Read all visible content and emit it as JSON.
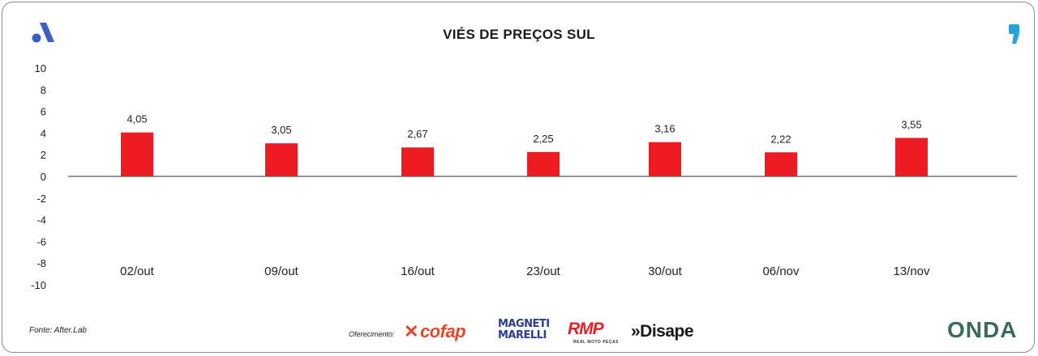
{
  "header": {
    "title": "VIÉS DE PREÇOS SUL"
  },
  "icons": {
    "left_logo": "after-lab-logo-icon",
    "right_logo": "comma-logo-icon"
  },
  "footer": {
    "source": "Fonte: After.Lab",
    "offer_label": "Oferecimento:",
    "sponsors": [
      "cofap",
      "MAGNETI MARELLI",
      "RMP",
      "REAL MOTO PEÇAS",
      "»Disape"
    ],
    "badge": "ONDA"
  },
  "colors": {
    "bar": "#ed1c24",
    "axis": "#555555",
    "logo_blue": "#3b5fc0"
  },
  "chart_data": {
    "type": "bar",
    "title": "VIÉS DE PREÇOS SUL",
    "categories": [
      "02/out",
      "09/out",
      "16/out",
      "23/out",
      "30/out",
      "06/nov",
      "13/nov"
    ],
    "values": [
      4.05,
      3.05,
      2.67,
      2.25,
      3.16,
      2.22,
      3.55
    ],
    "value_labels": [
      "4,05",
      "3,05",
      "2,67",
      "2,25",
      "3,16",
      "2,22",
      "3,55"
    ],
    "ylim": [
      -10,
      10
    ],
    "yticks": [
      10,
      8,
      6,
      4,
      2,
      0,
      -2,
      -4,
      -6,
      -8,
      -10
    ],
    "ytick_labels": [
      "10",
      "8",
      "6",
      "4",
      "2",
      "0",
      "-2",
      "-4",
      "-6",
      "-8",
      "-10"
    ],
    "xlabel": "",
    "ylabel": "",
    "grid": false,
    "legend": "none"
  }
}
